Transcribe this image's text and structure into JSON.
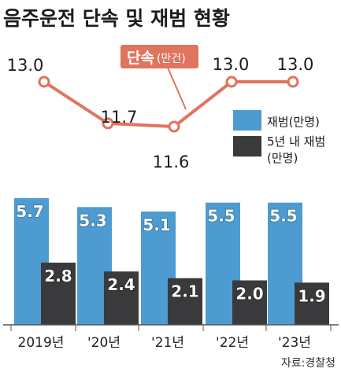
{
  "chart_data": {
    "type": "bar+line",
    "title": "음주운전 단속 및 재범 현황",
    "categories": [
      "2019년",
      "'20년",
      "'21년",
      "'22년",
      "'23년"
    ],
    "line": {
      "name": "단속",
      "unit": "(만건)",
      "values": [
        13.0,
        11.7,
        11.6,
        13.0,
        13.0
      ],
      "labels": [
        "13.0",
        "11.7",
        "11.6",
        "13.0",
        "13.0"
      ],
      "color": "#e0745e"
    },
    "series": [
      {
        "name": "재범(만명)",
        "values": [
          5.7,
          5.3,
          5.1,
          5.5,
          5.5
        ],
        "labels": [
          "5.7",
          "5.3",
          "5.1",
          "5.5",
          "5.5"
        ],
        "color": "#4d9bd0"
      },
      {
        "name": "5년 내 재범",
        "name_line2": "(만명)",
        "values": [
          2.8,
          2.4,
          2.1,
          2.0,
          1.9
        ],
        "labels": [
          "2.8",
          "2.4",
          "2.1",
          "2.0",
          "1.9"
        ],
        "color": "#3a3a3c"
      }
    ],
    "source": "자료:경찰청"
  }
}
